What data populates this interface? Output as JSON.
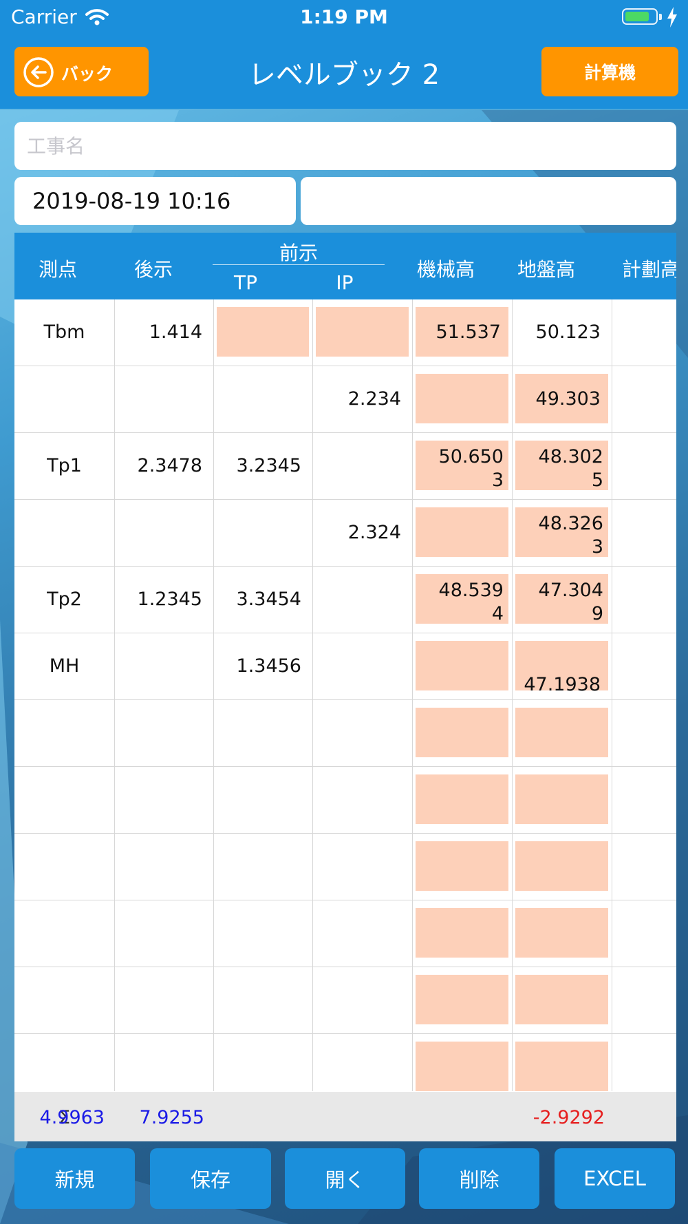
{
  "status_bar": {
    "carrier": "Carrier",
    "time": "1:19 PM",
    "battery_level": 0.8
  },
  "nav": {
    "back_label": "バック",
    "title": "レベルブック 2",
    "calculator_label": "計算機"
  },
  "form": {
    "project_name": {
      "value": "",
      "placeholder": "工事名"
    },
    "date": "2019-08-19 10:16",
    "note": ""
  },
  "table": {
    "headers": {
      "point": "測点",
      "backsight": "後示",
      "foresight_group": "前示",
      "tp": "TP",
      "ip": "IP",
      "instrument_height": "機械高",
      "ground_height": "地盤高",
      "planned_height": "計劃高"
    },
    "rows": [
      {
        "point": "Tbm",
        "bs": "1.414",
        "tp": "",
        "ip": "",
        "ih": [
          "51.537"
        ],
        "gh": [
          "50.123"
        ],
        "plan": ""
      },
      {
        "point": "",
        "bs": "",
        "tp": "",
        "ip": "2.234",
        "ih": [],
        "gh": [
          "49.303"
        ],
        "plan": ""
      },
      {
        "point": "Tp1",
        "bs": "2.3478",
        "tp": "3.2345",
        "ip": "",
        "ih": [
          "50.650",
          "3"
        ],
        "gh": [
          "48.302",
          "5"
        ],
        "plan": ""
      },
      {
        "point": "",
        "bs": "",
        "tp": "",
        "ip": "2.324",
        "ih": [],
        "gh": [
          "48.326",
          "3"
        ],
        "plan": ""
      },
      {
        "point": "Tp2",
        "bs": "1.2345",
        "tp": "3.3454",
        "ip": "",
        "ih": [
          "48.539",
          "4"
        ],
        "gh": [
          "47.304",
          "9"
        ],
        "plan": ""
      },
      {
        "point": "MH",
        "bs": "",
        "tp": "1.3456",
        "ip": "",
        "ih": [],
        "gh": [
          "47.1938"
        ],
        "plan": ""
      },
      {
        "point": "",
        "bs": "",
        "tp": "",
        "ip": "",
        "ih": [],
        "gh": [],
        "plan": ""
      },
      {
        "point": "",
        "bs": "",
        "tp": "",
        "ip": "",
        "ih": [],
        "gh": [],
        "plan": ""
      },
      {
        "point": "",
        "bs": "",
        "tp": "",
        "ip": "",
        "ih": [],
        "gh": [],
        "plan": ""
      },
      {
        "point": "",
        "bs": "",
        "tp": "",
        "ip": "",
        "ih": [],
        "gh": [],
        "plan": ""
      },
      {
        "point": "",
        "bs": "",
        "tp": "",
        "ip": "",
        "ih": [],
        "gh": [],
        "plan": ""
      },
      {
        "point": "",
        "bs": "",
        "tp": "",
        "ip": "",
        "ih": [],
        "gh": [],
        "plan": ""
      }
    ],
    "sum": {
      "symbol": "Σ",
      "bs_total": "4.9963",
      "tp_total": "7.9255",
      "difference": "-2.9292"
    }
  },
  "toolbar": {
    "new": "新規",
    "save": "保存",
    "open": "開く",
    "delete": "削除",
    "excel": "EXCEL"
  },
  "colors": {
    "bar_blue": "#1b8fdb",
    "accent_orange": "#ff9500",
    "computed_cell": "#fdd0b9",
    "sum_blue": "#1a1ae6",
    "sum_red": "#e61e1e"
  }
}
